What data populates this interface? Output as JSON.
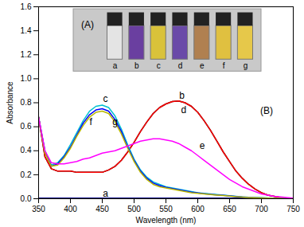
{
  "chart_data": {
    "type": "line",
    "x_label": "Wavelength (nm)",
    "y_label": "Absorbance",
    "xlim": [
      350,
      750
    ],
    "xticks": [
      350,
      400,
      450,
      500,
      550,
      600,
      650,
      700,
      750
    ],
    "ylim": [
      0,
      1.6
    ],
    "yticks": [
      {
        "value": 0,
        "label": "0.0"
      },
      {
        "value": 0.2,
        "label": "0.2"
      },
      {
        "value": 0.4,
        "label": "0.4"
      },
      {
        "value": 0.6,
        "label": "0.6"
      },
      {
        "value": 0.8,
        "label": "0.8"
      },
      {
        "value": 1.0,
        "label": "1.0"
      },
      {
        "value": 1.2,
        "label": "1.2"
      },
      {
        "value": 1.4,
        "label": "1.4"
      },
      {
        "value": 1.6,
        "label": "1.6"
      }
    ],
    "x": [
      350,
      360,
      370,
      380,
      390,
      400,
      410,
      420,
      430,
      440,
      450,
      460,
      470,
      480,
      490,
      500,
      510,
      520,
      530,
      540,
      550,
      560,
      570,
      580,
      590,
      600,
      610,
      620,
      630,
      640,
      650,
      660,
      670,
      680,
      690,
      700,
      710,
      720,
      730,
      740,
      750
    ],
    "series": [
      {
        "name": "a",
        "color": "#000080",
        "values": [
          0.005,
          0.005,
          0.005,
          0.005,
          0.005,
          0.005,
          0.005,
          0.005,
          0.005,
          0.005,
          0.005,
          0.005,
          0.005,
          0.005,
          0.005,
          0.005,
          0.005,
          0.005,
          0.005,
          0.005,
          0.005,
          0.005,
          0.005,
          0.005,
          0.005,
          0.005,
          0.005,
          0.005,
          0.005,
          0.005,
          0.005,
          0.005,
          0.005,
          0.005,
          0.005,
          0.005,
          0.005,
          0.005,
          0.005,
          0.005,
          0.005
        ]
      },
      {
        "name": "d",
        "color": "#000000",
        "values": [
          0.68,
          0.35,
          0.25,
          0.23,
          0.23,
          0.23,
          0.22,
          0.22,
          0.22,
          0.22,
          0.22,
          0.24,
          0.27,
          0.32,
          0.39,
          0.47,
          0.56,
          0.64,
          0.71,
          0.76,
          0.79,
          0.81,
          0.815,
          0.8,
          0.77,
          0.72,
          0.65,
          0.57,
          0.48,
          0.39,
          0.31,
          0.23,
          0.17,
          0.12,
          0.08,
          0.05,
          0.03,
          0.02,
          0.01,
          0.005,
          0.0
        ]
      },
      {
        "name": "b",
        "color": "#ff0000",
        "values": [
          0.68,
          0.35,
          0.25,
          0.23,
          0.23,
          0.23,
          0.22,
          0.22,
          0.22,
          0.22,
          0.22,
          0.24,
          0.27,
          0.32,
          0.39,
          0.47,
          0.56,
          0.64,
          0.71,
          0.76,
          0.79,
          0.81,
          0.815,
          0.8,
          0.77,
          0.72,
          0.65,
          0.57,
          0.48,
          0.39,
          0.31,
          0.23,
          0.17,
          0.12,
          0.08,
          0.05,
          0.03,
          0.02,
          0.01,
          0.005,
          0.0
        ]
      },
      {
        "name": "c",
        "color": "#00c0d0",
        "values": [
          0.68,
          0.4,
          0.28,
          0.3,
          0.36,
          0.45,
          0.55,
          0.65,
          0.73,
          0.77,
          0.78,
          0.76,
          0.69,
          0.58,
          0.45,
          0.33,
          0.24,
          0.18,
          0.14,
          0.12,
          0.1,
          0.09,
          0.08,
          0.07,
          0.06,
          0.05,
          0.045,
          0.04,
          0.035,
          0.03,
          0.025,
          0.02,
          0.015,
          0.012,
          0.01,
          0.008,
          0.006,
          0.005,
          0.004,
          0.003,
          0.002
        ]
      },
      {
        "name": "f",
        "color": "#0000ff",
        "values": [
          0.68,
          0.39,
          0.27,
          0.29,
          0.35,
          0.43,
          0.53,
          0.63,
          0.7,
          0.74,
          0.75,
          0.73,
          0.66,
          0.56,
          0.43,
          0.32,
          0.23,
          0.17,
          0.13,
          0.11,
          0.095,
          0.085,
          0.075,
          0.065,
          0.055,
          0.048,
          0.042,
          0.037,
          0.032,
          0.028,
          0.023,
          0.018,
          0.014,
          0.011,
          0.009,
          0.007,
          0.005,
          0.004,
          0.003,
          0.002,
          0.002
        ]
      },
      {
        "name": "g",
        "color": "#b8b800",
        "values": [
          0.68,
          0.38,
          0.27,
          0.28,
          0.34,
          0.42,
          0.52,
          0.61,
          0.68,
          0.72,
          0.73,
          0.71,
          0.64,
          0.54,
          0.42,
          0.31,
          0.22,
          0.16,
          0.12,
          0.1,
          0.09,
          0.08,
          0.07,
          0.06,
          0.05,
          0.045,
          0.04,
          0.035,
          0.03,
          0.026,
          0.021,
          0.017,
          0.013,
          0.01,
          0.008,
          0.006,
          0.005,
          0.004,
          0.003,
          0.002,
          0.001
        ]
      },
      {
        "name": "e",
        "color": "#ff00ff",
        "values": [
          0.68,
          0.4,
          0.3,
          0.29,
          0.29,
          0.3,
          0.31,
          0.33,
          0.34,
          0.36,
          0.38,
          0.39,
          0.4,
          0.42,
          0.44,
          0.46,
          0.48,
          0.49,
          0.5,
          0.5,
          0.49,
          0.48,
          0.46,
          0.43,
          0.4,
          0.36,
          0.32,
          0.28,
          0.24,
          0.2,
          0.16,
          0.13,
          0.1,
          0.08,
          0.06,
          0.04,
          0.03,
          0.02,
          0.015,
          0.01,
          0.005
        ]
      }
    ],
    "annotations": [
      {
        "text": "(B)",
        "x": 708,
        "y": 0.73
      },
      {
        "text": "b",
        "x": 575,
        "y": 0.86
      },
      {
        "text": "d",
        "x": 578,
        "y": 0.74
      },
      {
        "text": "c",
        "x": 455,
        "y": 0.83
      },
      {
        "text": "f",
        "x": 432,
        "y": 0.64
      },
      {
        "text": "g",
        "x": 470,
        "y": 0.64
      },
      {
        "text": "a",
        "x": 455,
        "y": 0.045
      },
      {
        "text": "e",
        "x": 607,
        "y": 0.44
      }
    ],
    "inset": {
      "label": "(A)",
      "vials": [
        {
          "label": "a",
          "color": "#e4e4e4"
        },
        {
          "label": "b",
          "color": "#6a3fa0"
        },
        {
          "label": "c",
          "color": "#d9c23a"
        },
        {
          "label": "d",
          "color": "#6a4aa8"
        },
        {
          "label": "e",
          "color": "#b08050"
        },
        {
          "label": "f",
          "color": "#e0c040"
        },
        {
          "label": "g",
          "color": "#e6c84a"
        }
      ]
    },
    "grid": false,
    "legend": false
  }
}
